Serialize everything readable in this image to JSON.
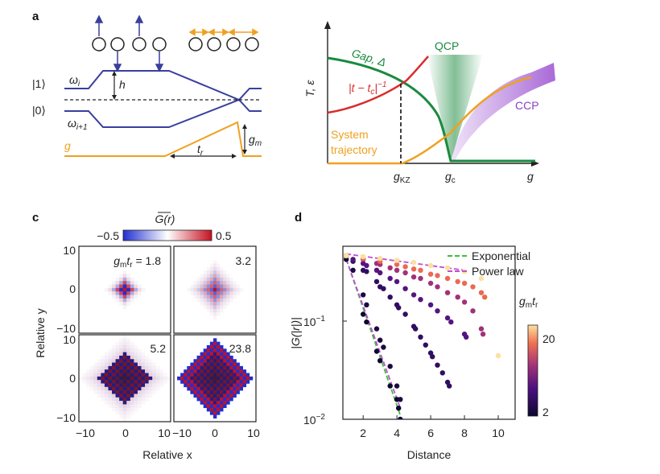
{
  "panel_a": {
    "letter": "a",
    "ket_1": "|1⟩",
    "ket_0": "|0⟩",
    "omega_i": "ω",
    "omega_i_sub": "i",
    "omega_i1": "ω",
    "omega_i1_sub": "i+1",
    "h_label": "h",
    "g_label": "g",
    "gm_label": "g",
    "gm_sub": "m",
    "tr_label": "t",
    "tr_sub": "r",
    "colors": {
      "navy": "#3a3f9e",
      "orange": "#f0a020"
    }
  },
  "panel_b": {
    "y_axis": "T, ε",
    "gap_label": "Gap, Δ",
    "kz_label_a": "|t − t",
    "kz_label_sub": "c",
    "kz_label_b": "|",
    "kz_label_sup": "−1",
    "qcp": "QCP",
    "ccp": "CCP",
    "system_l1": "System",
    "system_l2": "trajectory",
    "gkz": "g",
    "gkz_sub": "KZ",
    "gc": "g",
    "gc_sub": "c",
    "x_axis": "g",
    "colors": {
      "green": "#1a8a3f",
      "red": "#d92d2d",
      "orange": "#f0a020",
      "purple": "#8a3fc0"
    }
  },
  "panel_c": {
    "letter": "c",
    "colorbar_title": "G(r)",
    "colorbar_min": "−0.5",
    "colorbar_max": "0.5",
    "ylabel": "Relative y",
    "xlabel": "Relative x",
    "yticks_top": [
      "10",
      "0",
      "−10"
    ],
    "yticks_bottom": [
      "10",
      "0",
      "−10"
    ],
    "xticks_left": [
      "−10",
      "0",
      "10"
    ],
    "xticks_right": [
      "−10",
      "0",
      "10"
    ],
    "panels": [
      {
        "label": "1.8",
        "prefix": "g",
        "prefix_sub1": "m",
        "prefix_t": "t",
        "prefix_sub2": "r",
        "eq": " = 1.8",
        "radius": 3.5,
        "amplitude": 0.9
      },
      {
        "label": "3.2",
        "radius": 6,
        "amplitude": 0.55
      },
      {
        "label": "5.2",
        "radius": 9,
        "amplitude": 0.5
      },
      {
        "label": "23.8",
        "radius": 11,
        "amplitude": 0.7
      }
    ],
    "colors": {
      "neg": "#1f2fd0",
      "pos": "#c61020",
      "zero": "#ffffff"
    }
  },
  "panel_d": {
    "letter": "d",
    "ylabel": "|G(|r|)|",
    "xlabel": "Distance",
    "xticks": [
      "2",
      "4",
      "6",
      "8",
      "10"
    ],
    "yticks": [
      "10",
      "10"
    ],
    "ytick_exps": [
      "−1",
      "−2"
    ],
    "legend": {
      "exponential": "Exponential",
      "power_law": "Power law"
    },
    "colorbar_label_g": "g",
    "colorbar_label_gsub": "m",
    "colorbar_label_t": "t",
    "colorbar_label_tsub": "r",
    "colorbar_ticks": [
      "20",
      "2"
    ]
  },
  "chart_data": [
    {
      "type": "scatter",
      "title": "",
      "xlabel": "Distance",
      "ylabel": "|G(|r|)|",
      "xlim": [
        0.8,
        11
      ],
      "ylim": [
        0.01,
        0.6
      ],
      "y_scale": "log",
      "legend_placement": "top-right",
      "colorbar": {
        "label": "g_m t_r",
        "range": [
          2,
          20
        ]
      },
      "series": [
        {
          "color_value": 1.8,
          "x": [
            1,
            2,
            2.2,
            2.8,
            3,
            3.6,
            4,
            4.1,
            4.2
          ],
          "y": [
            0.44,
            0.12,
            0.1,
            0.05,
            0.04,
            0.022,
            0.016,
            0.013,
            0.01
          ]
        },
        {
          "color_value": 3.2,
          "x": [
            1,
            1.4,
            2,
            2.2,
            2.8,
            3,
            3.2,
            3.6,
            4,
            4.2
          ],
          "y": [
            0.48,
            0.34,
            0.19,
            0.15,
            0.085,
            0.065,
            0.055,
            0.035,
            0.022,
            0.016
          ]
        },
        {
          "color_value": 5.2,
          "x": [
            1,
            1.4,
            2,
            2.2,
            2.8,
            3,
            3.2,
            3.6,
            4,
            4.1,
            4.5,
            5,
            5.1,
            5.4,
            5.7,
            6,
            6.1,
            6.4,
            6.7,
            7,
            7.1
          ],
          "y": [
            0.48,
            0.42,
            0.34,
            0.33,
            0.26,
            0.23,
            0.22,
            0.18,
            0.15,
            0.14,
            0.12,
            0.09,
            0.085,
            0.07,
            0.058,
            0.048,
            0.044,
            0.036,
            0.03,
            0.024,
            0.022
          ]
        },
        {
          "color_value": 8,
          "x": [
            1,
            1.4,
            2,
            2.2,
            2.8,
            3,
            3.6,
            4,
            4.5,
            5,
            5.4,
            6,
            6.4,
            7,
            7.2,
            8,
            8.1
          ],
          "y": [
            0.48,
            0.44,
            0.4,
            0.38,
            0.34,
            0.32,
            0.28,
            0.26,
            0.22,
            0.19,
            0.17,
            0.15,
            0.13,
            0.11,
            0.1,
            0.075,
            0.07
          ]
        },
        {
          "color_value": 12,
          "x": [
            1,
            2,
            2.8,
            3,
            3.6,
            4,
            4.5,
            5,
            5.4,
            6,
            6.4,
            7,
            7.6,
            8,
            8.5,
            9,
            9.1
          ],
          "y": [
            0.48,
            0.44,
            0.4,
            0.39,
            0.36,
            0.34,
            0.32,
            0.29,
            0.28,
            0.25,
            0.23,
            0.2,
            0.18,
            0.16,
            0.13,
            0.085,
            0.075
          ]
        },
        {
          "color_value": 16,
          "x": [
            1,
            2,
            3,
            4,
            4.5,
            5,
            5.4,
            6,
            6.4,
            7,
            7.6,
            8,
            8.5,
            9,
            9.2
          ],
          "y": [
            0.48,
            0.45,
            0.42,
            0.39,
            0.37,
            0.35,
            0.34,
            0.31,
            0.3,
            0.28,
            0.26,
            0.25,
            0.23,
            0.2,
            0.18
          ]
        },
        {
          "color_value": 20,
          "x": [
            1,
            2,
            3,
            4,
            5,
            6,
            7,
            8,
            9,
            10
          ],
          "y": [
            0.48,
            0.47,
            0.45,
            0.43,
            0.41,
            0.38,
            0.36,
            0.33,
            0.28,
            0.045
          ]
        }
      ],
      "fits": [
        {
          "name": "Exponential",
          "x": [
            1,
            4.2
          ],
          "y": [
            0.44,
            0.011
          ]
        },
        {
          "name": "Power law",
          "x": [
            1,
            4.2
          ],
          "y": [
            0.44,
            0.013
          ]
        },
        {
          "name": "Power law",
          "x": [
            1,
            8
          ],
          "y": [
            0.5,
            0.34
          ]
        }
      ]
    }
  ]
}
